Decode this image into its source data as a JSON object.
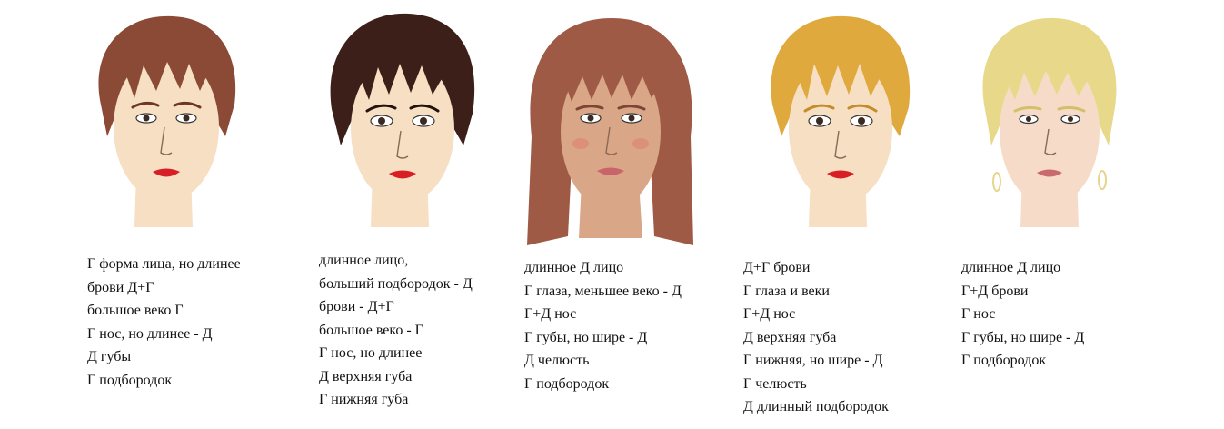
{
  "portraits": [
    {
      "colors": {
        "hair": "#8a4a35",
        "hair_dark": "#6d3626",
        "skin": "#f6dfc2",
        "lips": "#d81f26"
      },
      "notes": [
        "Г форма лица, но длинее",
        "брови Д+Г",
        "большое веко Г",
        "Г нос, но длинее - Д",
        "Д губы",
        "Г подбородок"
      ]
    },
    {
      "colors": {
        "hair": "#3b1f18",
        "hair_dark": "#24120d",
        "skin": "#f6dfc2",
        "lips": "#d81f26"
      },
      "notes": [
        "длинное лицо,",
        "больший подбородок - Д",
        "брови - Д+Г",
        "большое веко - Г",
        "Г нос, но длинее",
        "Д верхняя губа",
        "Г нижняя губа"
      ]
    },
    {
      "colors": {
        "hair": "#9e5a45",
        "hair_dark": "#7f4434",
        "skin": "#d9a687",
        "lips": "#c9646a"
      },
      "notes": [
        "длинное Д лицо",
        "Г глаза, меньшее веко - Д",
        "Г+Д нос",
        "Г губы, но шире - Д",
        "Д челюсть",
        "Г подбородок"
      ]
    },
    {
      "colors": {
        "hair": "#e0a93e",
        "hair_dark": "#c48c2a",
        "skin": "#f6dfc2",
        "lips": "#d81f26"
      },
      "notes": [
        "Д+Г брови",
        "Г глаза и веки",
        "Г+Д нос",
        "Д верхняя губа",
        "Г нижняя, но шире - Д",
        "Г челюсть",
        "Д длинный подбородок"
      ]
    },
    {
      "colors": {
        "hair": "#e8d98a",
        "hair_dark": "#d4c06a",
        "skin": "#f6dcc8",
        "lips": "#c96a6e"
      },
      "notes": [
        "длинное Д лицо",
        "Г+Д брови",
        "Г нос",
        "Г губы, но шире - Д",
        "Г подбородок"
      ]
    }
  ]
}
